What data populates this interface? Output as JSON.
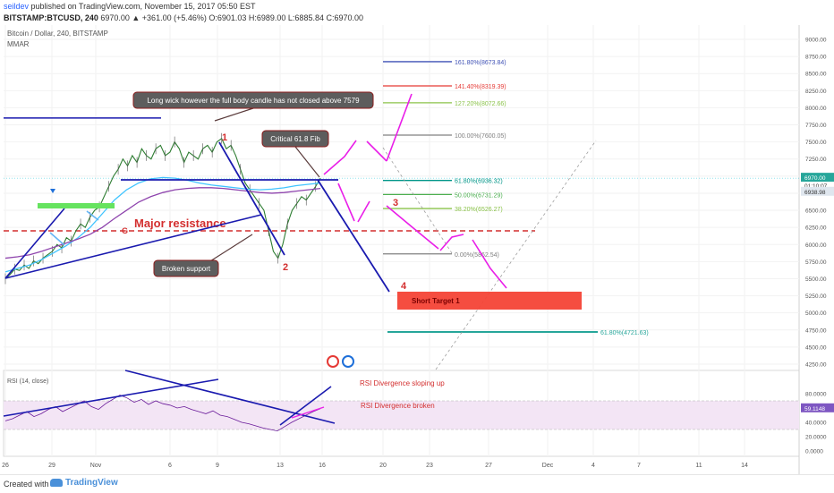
{
  "header": {
    "author": "seildev",
    "publish_text": "published on TradingView.com, November 15, 2017 05:50 EST",
    "symbol": "BITSTAMP:BTCUSD, 240",
    "ohlc": "6970.00 ▲ +361.00 (+5.46%) O:6901.03 H:6989.00 L:6885.84 C:6970.00"
  },
  "legend": {
    "title": "Bitcoin / Dollar, 240, BITSTAMP",
    "indicator": "MMAR"
  },
  "chart_data": {
    "type": "line",
    "price_axis": {
      "range": [
        4200,
        9250
      ],
      "ticks": [
        "9000.00",
        "8750.00",
        "8500.00",
        "8250.00",
        "8000.00",
        "7750.00",
        "7500.00",
        "7250.00",
        "7000.00",
        "6750.00",
        "6500.00",
        "6250.00",
        "6000.00",
        "5750.00",
        "5500.00",
        "5250.00",
        "5000.00",
        "4750.00",
        "4500.00",
        "4250.00"
      ]
    },
    "price_labels": {
      "last": "6970.00",
      "countdown": "01:10:07",
      "ma": "6938.98"
    },
    "time_labels": [
      "26",
      "29",
      "Nov",
      "6",
      "9",
      "13",
      "16",
      "20",
      "23",
      "27",
      "Dec",
      "4",
      "7",
      "11",
      "14"
    ],
    "price_line": {
      "name": "BTCUSD",
      "values": [
        5500,
        5560,
        5640,
        5620,
        5700,
        5650,
        5760,
        5720,
        5800,
        5850,
        5900,
        6000,
        5950,
        6100,
        6050,
        6200,
        6300,
        6250,
        6400,
        6500,
        6550,
        6700,
        6850,
        7000,
        7100,
        7250,
        7150,
        7300,
        7200,
        7400,
        7300,
        7250,
        7400,
        7450,
        7300,
        7350,
        7500,
        7400,
        7200,
        7350,
        7300,
        7250,
        7400,
        7450,
        7350,
        7500,
        7550,
        7400,
        7450,
        7300,
        7100,
        6900,
        6800,
        6700,
        6600,
        6500,
        6200,
        5900,
        5800,
        6000,
        6300,
        6500,
        6600,
        6700,
        6650,
        6750,
        6850,
        6970
      ]
    },
    "ma_fast": {
      "color": "#40c4ff",
      "values": [
        5600,
        5650,
        5700,
        5780,
        5880,
        5980,
        6100,
        6250,
        6450,
        6650,
        6800,
        6900,
        6960,
        6980,
        6970,
        6940,
        6900,
        6870,
        6850,
        6830,
        6810,
        6800,
        6810,
        6830,
        6860,
        6880,
        6900
      ]
    },
    "ma_slow": {
      "color": "#8e44ad",
      "values": [
        5800,
        5820,
        5850,
        5900,
        5960,
        6020,
        6080,
        6150,
        6250,
        6380,
        6500,
        6620,
        6700,
        6760,
        6800,
        6820,
        6830,
        6830,
        6820,
        6800,
        6780,
        6760,
        6750,
        6760,
        6780,
        6800,
        6820
      ]
    },
    "fib_levels": [
      {
        "label": "161.80%(8673.84)",
        "value": 8673.84,
        "color": "#3f51b5"
      },
      {
        "label": "141.40%(8319.39)",
        "value": 8319.39,
        "color": "#e53935"
      },
      {
        "label": "127.20%(8072.66)",
        "value": 8072.66,
        "color": "#8bc34a"
      },
      {
        "label": "100.00%(7600.05)",
        "value": 7600.05,
        "color": "#808080"
      },
      {
        "label": "61.80%(6936.32)",
        "value": 6936.32,
        "color": "#009688"
      },
      {
        "label": "50.00%(6731.29)",
        "value": 6731.29,
        "color": "#4caf50"
      },
      {
        "label": "38.20%(6526.27)",
        "value": 6526.27,
        "color": "#8bc34a"
      },
      {
        "label": "0.00%(5862.54)",
        "value": 5862.54,
        "color": "#808080"
      },
      {
        "label": "61.80%(4721.63)",
        "value": 4721.63,
        "color": "#26a69a"
      }
    ],
    "major_resistance": {
      "label": "Major resistance",
      "value": 6200
    },
    "annotations": {
      "callout_wick": "Long wick however the full body candle has not closed above 7579",
      "callout_fib": "Critical 61.8 Fib",
      "callout_support": "Broken support",
      "box_g": "G",
      "short_target": "Short Target 1",
      "wave_labels": [
        "1",
        "2",
        "3",
        "4"
      ]
    },
    "rsi": {
      "title": "RSI (14, close)",
      "range": [
        0,
        90
      ],
      "ticks": [
        "80.0000",
        "60.0000",
        "40.0000",
        "20.0000",
        "0.0000"
      ],
      "band": [
        30,
        70
      ],
      "value_label": "59.1148",
      "values": [
        42,
        45,
        50,
        55,
        48,
        52,
        58,
        62,
        55,
        60,
        65,
        70,
        62,
        58,
        66,
        72,
        78,
        74,
        68,
        72,
        65,
        70,
        66,
        64,
        60,
        62,
        58,
        55,
        52,
        56,
        50,
        48,
        44,
        40,
        38,
        35,
        32,
        30,
        28,
        34,
        40,
        45,
        50,
        55,
        59
      ],
      "annotations": [
        "RSI Divergence sloping up",
        "RSI Divergence broken"
      ]
    }
  },
  "footer": {
    "created_with": "Created with",
    "brand": "TradingView"
  }
}
